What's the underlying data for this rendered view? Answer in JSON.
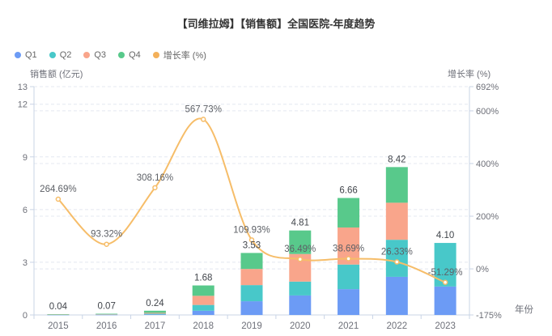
{
  "title": "【司维拉姆】【销售额】全国医院-年度趋势",
  "legend": {
    "items": [
      {
        "label": "Q1",
        "color": "#6C9BF5"
      },
      {
        "label": "Q2",
        "color": "#48C8C9"
      },
      {
        "label": "Q3",
        "color": "#F9A58B"
      },
      {
        "label": "Q4",
        "color": "#58C98B"
      },
      {
        "label": "增长率 (%)",
        "color": "#F3B05A"
      }
    ]
  },
  "chart_data": {
    "type": "combo: stacked bar + line",
    "title": "【司维拉姆】【销售额】全国医院-年度趋势",
    "categories": [
      "2015",
      "2016",
      "2017",
      "2018",
      "2019",
      "2020",
      "2021",
      "2022",
      "2023"
    ],
    "series": [
      {
        "name": "Q1",
        "type": "bar",
        "stack": "sales",
        "color": "#6C9BF5",
        "values": [
          0.01,
          0.01,
          0.03,
          0.24,
          0.78,
          1.11,
          1.47,
          2.17,
          1.62
        ]
      },
      {
        "name": "Q2",
        "type": "bar",
        "stack": "sales",
        "color": "#48C8C9",
        "values": [
          0.01,
          0.02,
          0.04,
          0.33,
          0.92,
          0.79,
          1.4,
          2.11,
          2.48
        ]
      },
      {
        "name": "Q3",
        "type": "bar",
        "stack": "sales",
        "color": "#F9A58B",
        "values": [
          0.01,
          0.02,
          0.05,
          0.52,
          0.92,
          1.57,
          2.11,
          2.11,
          0
        ]
      },
      {
        "name": "Q4",
        "type": "bar",
        "stack": "sales",
        "color": "#58C98B",
        "values": [
          0.01,
          0.02,
          0.12,
          0.59,
          0.91,
          1.34,
          1.68,
          2.03,
          0
        ]
      },
      {
        "name": "增长率 (%)",
        "type": "line",
        "axis": "right",
        "color": "#F6BD69",
        "values": [
          264.69,
          93.32,
          308.16,
          567.73,
          109.93,
          36.49,
          38.69,
          26.33,
          -51.29
        ]
      }
    ],
    "bar_totals": [
      0.04,
      0.07,
      0.24,
      1.68,
      3.53,
      4.81,
      6.66,
      8.42,
      4.1
    ],
    "bar_total_labels": [
      "0.04",
      "0.07",
      "0.24",
      "1.68",
      "3.53",
      "4.81",
      "6.66",
      "8.42",
      "4.10"
    ],
    "growth_point_labels": [
      "264.69%",
      "93.32%",
      "308.16%",
      "567.73%",
      "109.93%",
      "36.49%",
      "38.69%",
      "26.33%",
      "-51.29%"
    ],
    "left_axis": {
      "name": "销售额 (亿元)",
      "min": 0,
      "max": 13,
      "ticks": [
        0,
        3,
        6,
        9,
        12,
        13
      ],
      "tick_labels": [
        "0",
        "3",
        "6",
        "9",
        "12",
        "13"
      ]
    },
    "right_axis": {
      "name": "增长率 (%)",
      "min": -175,
      "max": 692,
      "ticks": [
        -175,
        0,
        200,
        400,
        600,
        692
      ],
      "tick_labels": [
        "-175%",
        "0%",
        "200%",
        "400%",
        "600%",
        "692%"
      ]
    },
    "x_axis": {
      "name": "年份"
    },
    "layout": {
      "legend_position": "top-left",
      "grid": "dashed horizontal"
    }
  }
}
